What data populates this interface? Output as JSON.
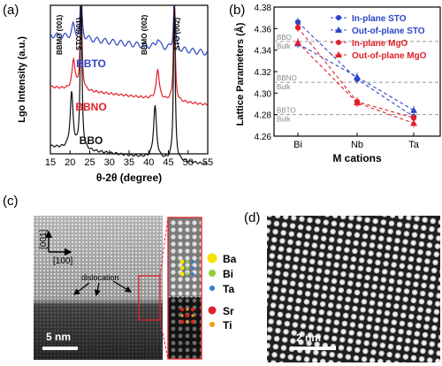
{
  "panels": {
    "a": {
      "label": "(a)"
    },
    "b": {
      "label": "(b)"
    },
    "c": {
      "label": "(c)"
    },
    "d": {
      "label": "(d)"
    }
  },
  "chart_data": [
    {
      "type": "line",
      "panel": "a",
      "xlabel": "θ-2θ (degree)",
      "ylabel": "Lgo Intensity (a.u.)",
      "xlim": [
        15,
        55
      ],
      "x_ticks": [
        "15",
        "20",
        "25",
        "30",
        "35",
        "40",
        "45",
        "50",
        "55"
      ],
      "legend": "none",
      "series": [
        {
          "name": "BBTO",
          "color": "#2b46c8",
          "x": [
            15,
            20.8,
            22.8,
            42.3,
            46.5,
            55
          ],
          "y": [
            0.8,
            0.88,
            1.15,
            0.86,
            1.15,
            0.75
          ]
        },
        {
          "name": "BBNO",
          "color": "#e0202a",
          "x": [
            15,
            20.9,
            22.8,
            42.3,
            46.5,
            55
          ],
          "y": [
            0.45,
            0.65,
            1.15,
            0.65,
            1.15,
            0.43
          ]
        },
        {
          "name": "BBO",
          "color": "#111111",
          "x": [
            15,
            20.4,
            22.8,
            41.6,
            46.5,
            55
          ],
          "y": [
            0.05,
            0.42,
            1.15,
            0.4,
            1.15,
            0.03
          ]
        }
      ],
      "annotations": [
        "BBMO (001)",
        "STO (001)",
        "BBMO (002)",
        "STO (002)"
      ]
    },
    {
      "type": "line",
      "panel": "b",
      "xlabel": "M cations",
      "ylabel": "Lattice Parameters (Å)",
      "categories": [
        "Bi",
        "Nb",
        "Ta"
      ],
      "ylim": [
        4.26,
        4.38
      ],
      "y_ticks": [
        "4.26",
        "4.28",
        "4.30",
        "4.32",
        "4.34",
        "4.36",
        "4.38"
      ],
      "legend": "top-right",
      "series": [
        {
          "name": "In-plane STO",
          "color": "#2b46c8",
          "marker": "circle",
          "values": [
            4.366,
            4.313,
            4.278
          ]
        },
        {
          "name": "Out-of-plane STO",
          "color": "#2b46c8",
          "marker": "triangle",
          "values": [
            4.346,
            4.315,
            4.284
          ]
        },
        {
          "name": "In-plane MgO",
          "color": "#e0202a",
          "marker": "circle",
          "values": [
            4.361,
            4.292,
            4.277
          ]
        },
        {
          "name": "Out-of-plane MgO",
          "color": "#e0202a",
          "marker": "triangle",
          "values": [
            4.347,
            4.291,
            4.272
          ]
        }
      ],
      "reference_lines": [
        {
          "top": "BBO",
          "bottom": "Bulk",
          "value": 4.348
        },
        {
          "top": "BBNO",
          "bottom": "Bulk",
          "value": 4.31
        },
        {
          "top": "BBTO",
          "bottom": "Bulk",
          "value": 4.28
        }
      ]
    }
  ],
  "stem": {
    "axis_001": "[001]",
    "axis_100": "[100]",
    "dislocation": "dislocation",
    "scale_c": "5 nm",
    "scale_d": "2 nm",
    "legend": [
      {
        "label": "Ba",
        "color": "#f5e400"
      },
      {
        "label": "Bi",
        "color": "#8fcf3a"
      },
      {
        "label": "Ta",
        "color": "#2a7fd4"
      },
      {
        "label": "Sr",
        "color": "#e0202a"
      },
      {
        "label": "Ti",
        "color": "#f39c12"
      }
    ]
  }
}
